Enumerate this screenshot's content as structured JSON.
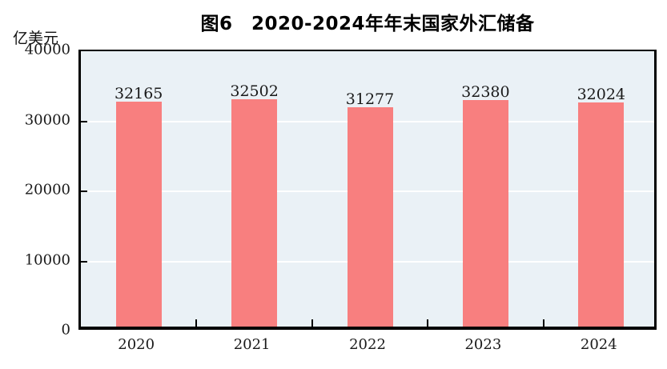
{
  "chart_data": {
    "type": "bar",
    "title": "图6　2020-2024年年末国家外汇储备",
    "ylabel": "亿美元",
    "xlabel": "",
    "categories": [
      "2020",
      "2021",
      "2022",
      "2023",
      "2024"
    ],
    "values": [
      32165,
      32502,
      31277,
      32380,
      32024
    ],
    "value_labels": [
      "32165",
      "32502",
      "31277",
      "32380",
      "32024"
    ],
    "ylim": [
      0,
      40000
    ],
    "yticks": [
      0,
      10000,
      20000,
      30000,
      40000
    ],
    "grid": "horizontal",
    "legend_position": "none",
    "colors": {
      "bar": "#F87F7F",
      "plot_background": "#EAF1F6",
      "gridline": "#FFFFFF",
      "axis": "#000000",
      "label_text": "#1A1A1A"
    }
  }
}
